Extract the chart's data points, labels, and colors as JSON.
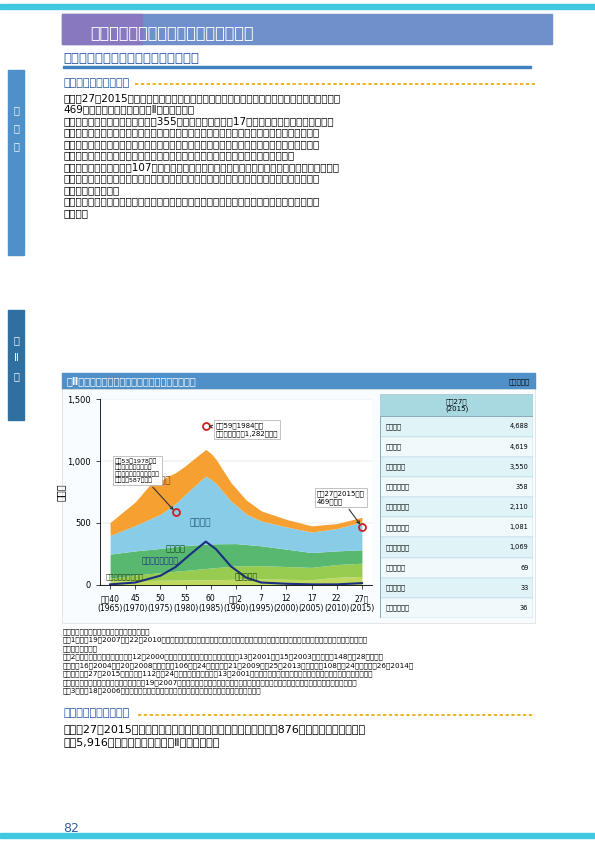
{
  "page_title": "第２節　我が国の水産業をめぐる動き",
  "section_title": "（１）漁業・養殖業の国内生産の動向",
  "subsection1": "（国内生産量の動向）",
  "body_text1_lines": [
    "　平成27（2015）年の我が国の漁業・養殖業生産量は、前年から８万トン（２％）減少し、",
    "469万トンとなりました（図Ⅱ－２－１）。",
    "　このうち、海面漁業の漁獲量は355万トンで、前年から17万トン（５％）減少しました。",
    "これは主に、主産地であるオホーツク海沿岸で爆弾低気圧の被害を受けたホタテガイや、海",
    "流の影響により我が国沿岸に好漁場が形成されず資源量も減少しているサンマの漁獲量が減",
    "少したこと等によります。一方、マイワシやサバ類等では漁獲量が増加しました。",
    "　海面養殖業の収獲量は107万トンで、前年から８万トン（８％）増加しました。魚種別には、",
    "青森県で斃死が少なく生育の良かったホタテガイ、兵庫県で生育の良かったノリ類等で収獲",
    "量が増加しました。",
    "　また、内水面漁業・養殖業の生産量は６万９千トンで、前年から５千トン（７％）増加し",
    "ました。"
  ],
  "chart_title": "図Ⅱ－２－１　漁業・養殖業の国内生産量の推移",
  "chart_ylabel": "万トン",
  "chart_xtick_labels": [
    "昭和40\n(1965)",
    "45\n(1970)",
    "50\n(1975)",
    "55\n(1980)",
    "60\n(1985)",
    "平成2\n(1990)",
    "7\n(1995)",
    "12\n(2000)",
    "17\n(2005)",
    "22\n(2010)",
    "27年\n(2015)"
  ],
  "chart_xtick_positions": [
    1965,
    1970,
    1975,
    1980,
    1985,
    1990,
    1995,
    2000,
    2005,
    2010,
    2015
  ],
  "years": [
    1965,
    1966,
    1967,
    1968,
    1969,
    1970,
    1971,
    1972,
    1973,
    1974,
    1975,
    1976,
    1977,
    1978,
    1979,
    1980,
    1981,
    1982,
    1983,
    1984,
    1985,
    1986,
    1987,
    1988,
    1989,
    1990,
    1991,
    1992,
    1993,
    1994,
    1995,
    1996,
    1997,
    1998,
    1999,
    2000,
    2001,
    2002,
    2003,
    2004,
    2005,
    2006,
    2007,
    2008,
    2009,
    2010,
    2011,
    2012,
    2013,
    2014,
    2015
  ],
  "source_lines": [
    "資料：農林水産省「漁業・養殖業生産統計」",
    "注：1）平成19（2007）～22（2010）年については、漁業・養殖業生産量の内訳である「遠洋漁業」、「沖合漁業」及び「沿岸漁業」は推計",
    "　　　値である。",
    "　　2）内水面漁業生産量は、平成12（2000）年以前は全ての河川及び湖沼、平成13（2001）～15（2003）年は主要148河川28湖沼、平",
    "　　　成16（2004）～20（2008）年は主要106河川24湖沼、平成21（2009）～25（2013）年は主要108河川24湖沼、平成26（2014）",
    "　　　年及び27（2015）年は主要112河川24湖沼の値である。平成13（2001）年以降の内水面養殖業生産量は、マス類、アユ、コイ及びウ",
    "　　　ナギの４魚種の収獲量であり、平成19（2007）年以降の収獲量は、猪苗代、霞ヶ浦及び北浦において養殖されたその他の収獲量を含む。",
    "　　3）平成18（2006）年以降の内水面漁業の生産量には、遊漁者による採捕は含まれない。"
  ],
  "subsection2": "（国内生産額の動向）",
  "body_text2_lines": [
    "　平成27（2015）年の我が国の漁業・養殖業生産額は、前年から876億円（６％）増加し、",
    "１兆5,916億円となりました（図Ⅱ－２－２）。"
  ],
  "table_col_header": "平成27年\n(2015)",
  "table_rows": [
    [
      "合　　計",
      "4,688"
    ],
    [
      "海　　面",
      "4,619"
    ],
    [
      "　漁　　業",
      "3,550"
    ],
    [
      "　　遠洋漁業",
      "358"
    ],
    [
      "　　沖合漁業",
      "2,110"
    ],
    [
      "　　沿岸漁業",
      "1,081"
    ],
    [
      "　養　殖　業",
      "1,069"
    ],
    [
      "内　水　面",
      "69"
    ],
    [
      "　漁　　業",
      "33"
    ],
    [
      "　養　殖　業",
      "36"
    ]
  ],
  "page_number": "82",
  "colors": {
    "enyo": "#F5A030",
    "chugyo": "#80C8E8",
    "engan": "#50B868",
    "yosyoku": "#A0D060",
    "naisuimen_fish": "#C8DC60",
    "naisuimen_aqua": "#D8E890",
    "maiwa_line": "#1C2E80",
    "header_bar": "#6AAAD8",
    "header_bar_gradient_left": "#8080C8",
    "section_title_color": "#2050A0",
    "sidebar1_color": "#5090C8",
    "sidebar2_color": "#3070A0",
    "chart_title_bar": "#5090C8",
    "table_header_bg": "#A8D8E0",
    "table_row_even": "#E0F4F8",
    "table_row_odd": "#F0FAFB",
    "dot_line_color": "#E8A800",
    "annotation_bg": "white",
    "red_circle": "#CC2020"
  }
}
